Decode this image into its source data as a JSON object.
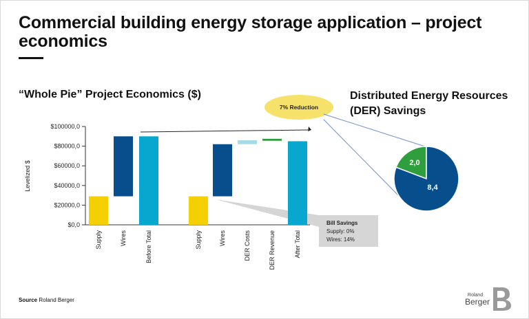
{
  "header": {
    "title": "Commercial building energy storage application – project economics"
  },
  "chart_data": [
    {
      "type": "bar",
      "title": "“Whole Pie” Project Economics ($)",
      "ylabel": "Levelized $",
      "ylim": [
        0,
        100000
      ],
      "yticks": [
        "$0,0",
        "$20000,0",
        "$40000,0",
        "$60000,0",
        "$80000,0",
        "$100000,0"
      ],
      "grid": false,
      "categories": [
        "Supply",
        "Wires",
        "Before Total",
        "Supply",
        "Wires",
        "DER Costs",
        "DER Revenue",
        "After Total"
      ],
      "bars": [
        {
          "category": "Supply",
          "base": 0,
          "top": 29000,
          "color": "#f5d000"
        },
        {
          "category": "Wires",
          "base": 29000,
          "top": 90000,
          "color": "#064f8c"
        },
        {
          "category": "Before Total",
          "base": 0,
          "top": 90000,
          "color": "#08a7cf"
        },
        {
          "category": "Supply",
          "base": 0,
          "top": 29000,
          "color": "#f5d000"
        },
        {
          "category": "Wires",
          "base": 29000,
          "top": 82000,
          "color": "#064f8c"
        },
        {
          "category": "DER Costs",
          "base": 82000,
          "top": 86000,
          "color": "#a6dbea"
        },
        {
          "category": "DER Revenue",
          "base": 85500,
          "top": 87500,
          "color": "#2f9e3c"
        },
        {
          "category": "After Total",
          "base": 0,
          "top": 85000,
          "color": "#08a7cf"
        }
      ],
      "annotations": {
        "reduction_label": "7% Reduction",
        "bill_savings_title": "Bill Savings",
        "bill_savings_supply": "Supply: 0%",
        "bill_savings_wires": "Wires: 14%"
      }
    },
    {
      "type": "pie",
      "title": "Distributed Energy Resources (DER) Savings",
      "slices": [
        {
          "label": "2,0",
          "value": 2.0,
          "color": "#2f9e3c"
        },
        {
          "label": "8,4",
          "value": 8.4,
          "color": "#064f8c"
        }
      ]
    }
  ],
  "footer": {
    "source_label": "Source",
    "source_text": "Roland Berger",
    "logo_top": "Roland",
    "logo_bottom": "Berger"
  }
}
